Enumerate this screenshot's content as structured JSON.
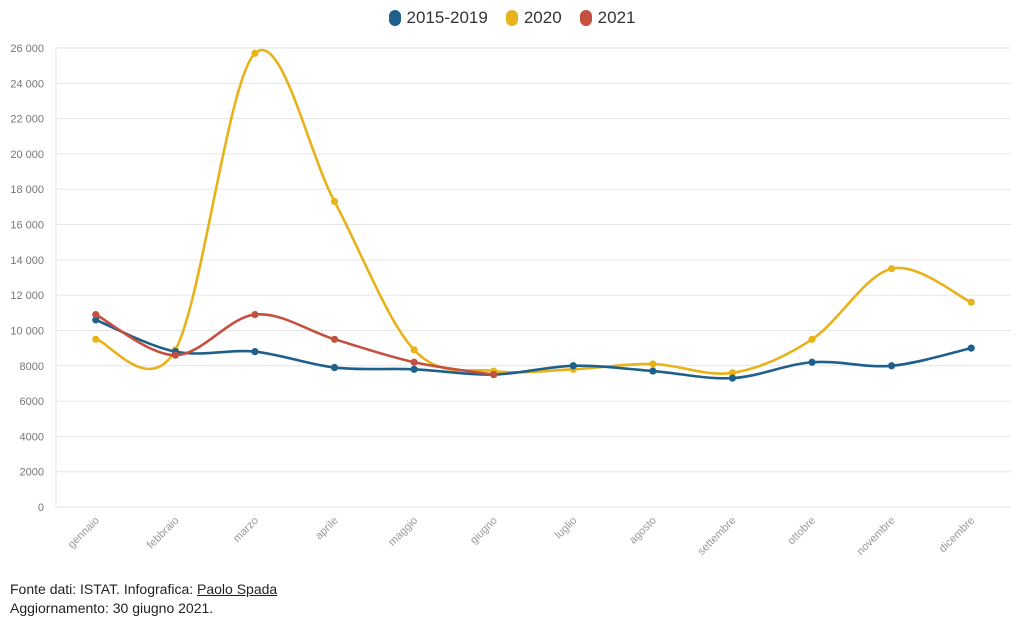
{
  "legend": [
    {
      "label": "2015-2019",
      "color": "#1f5f8b"
    },
    {
      "label": "2020",
      "color": "#e8b21a"
    },
    {
      "label": "2021",
      "color": "#c4503f"
    }
  ],
  "chart_data": {
    "type": "line",
    "categories": [
      "gennaio",
      "febbraio",
      "marzo",
      "aprile",
      "maggio",
      "giugno",
      "luglio",
      "agosto",
      "settembre",
      "ottobre",
      "novembre",
      "dicembre"
    ],
    "ylim": [
      0,
      26000
    ],
    "yticks": [
      0,
      2000,
      4000,
      6000,
      8000,
      10000,
      12000,
      14000,
      16000,
      18000,
      20000,
      22000,
      24000,
      26000
    ],
    "ytick_labels": [
      "0",
      "2000",
      "4000",
      "6000",
      "8000",
      "10 000",
      "12 000",
      "14 000",
      "16 000",
      "18 000",
      "20 000",
      "22 000",
      "24 000",
      "26 000"
    ],
    "grid": true,
    "legend_position": "top-center",
    "series": [
      {
        "name": "2015-2019",
        "color": "#1f5f8b",
        "values": [
          10600,
          8800,
          8800,
          7900,
          7800,
          7500,
          8000,
          7700,
          7300,
          8200,
          8000,
          9000
        ]
      },
      {
        "name": "2020",
        "color": "#e8b21a",
        "values": [
          9500,
          8900,
          25700,
          17300,
          8900,
          7700,
          7800,
          8100,
          7600,
          9500,
          13500,
          11600
        ]
      },
      {
        "name": "2021",
        "color": "#c4503f",
        "values": [
          10900,
          8600,
          10900,
          9500,
          8200,
          7500,
          null,
          null,
          null,
          null,
          null,
          null
        ]
      }
    ]
  },
  "footer": {
    "source_prefix": "Fonte dati: ISTAT. Infografica: ",
    "author_link": "Paolo Spada",
    "updated": "Aggiornamento: 30 giugno 2021."
  }
}
